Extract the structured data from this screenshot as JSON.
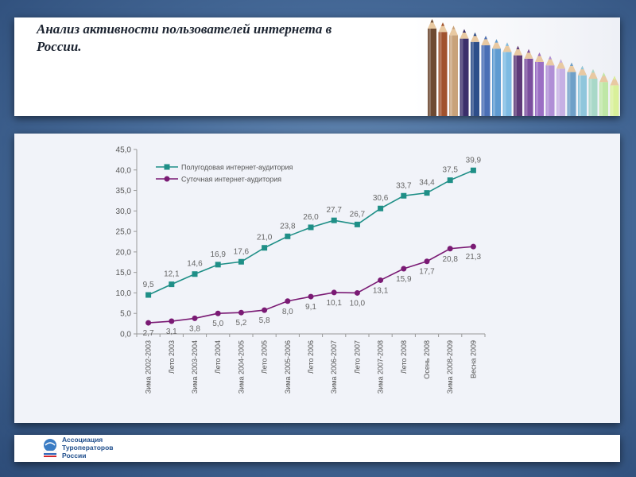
{
  "slide": {
    "title": "Анализ активности пользователей интернета в России."
  },
  "footer": {
    "org_lines": [
      "Ассоциация",
      "Туроператоров",
      "России"
    ]
  },
  "chart_data": {
    "type": "line",
    "ylim": [
      0,
      45
    ],
    "yticks": [
      "0,0",
      "5,0",
      "10,0",
      "15,0",
      "20,0",
      "25,0",
      "30,0",
      "35,0",
      "40,0",
      "45,0"
    ],
    "categories": [
      "Зима 2002-2003",
      "Лето 2003",
      "Зима 2003-2004",
      "Лето 2004",
      "Зима 2004-2005",
      "Лето 2005",
      "Зима 2005-2006",
      "Лето 2006",
      "Зима 2006-2007",
      "Лето 2007",
      "Зима 2007-2008",
      "Лето 2008",
      "Осень 2008",
      "Зима 2008-2009",
      "Весна 2009"
    ],
    "legend": {
      "position": "top-left"
    },
    "series": [
      {
        "name": "Полугодовая интернет-аудитория",
        "color": "#1f8f87",
        "marker": "square",
        "values": [
          9.5,
          12.1,
          14.6,
          16.9,
          17.6,
          21.0,
          23.8,
          26.0,
          27.7,
          26.7,
          30.6,
          33.7,
          34.4,
          37.5,
          39.9
        ],
        "labels": [
          "9,5",
          "12,1",
          "14,6",
          "16,9",
          "17,6",
          "21,0",
          "23,8",
          "26,0",
          "27,7",
          "26,7",
          "30,6",
          "33,7",
          "34,4",
          "37,5",
          "39,9"
        ]
      },
      {
        "name": "Суточная интернет-аудитория",
        "color": "#7a1a74",
        "marker": "circle",
        "values": [
          2.7,
          3.1,
          3.8,
          5.0,
          5.2,
          5.8,
          8.0,
          9.1,
          10.1,
          10.0,
          13.1,
          15.9,
          17.7,
          20.8,
          21.3
        ],
        "labels": [
          "2,7",
          "3,1",
          "3,8",
          "5,0",
          "5,2",
          "5,8",
          "8,0",
          "9,1",
          "10,1",
          "10,0",
          "13,1",
          "15,9",
          "17,7",
          "20,8",
          "21,3"
        ]
      }
    ]
  }
}
